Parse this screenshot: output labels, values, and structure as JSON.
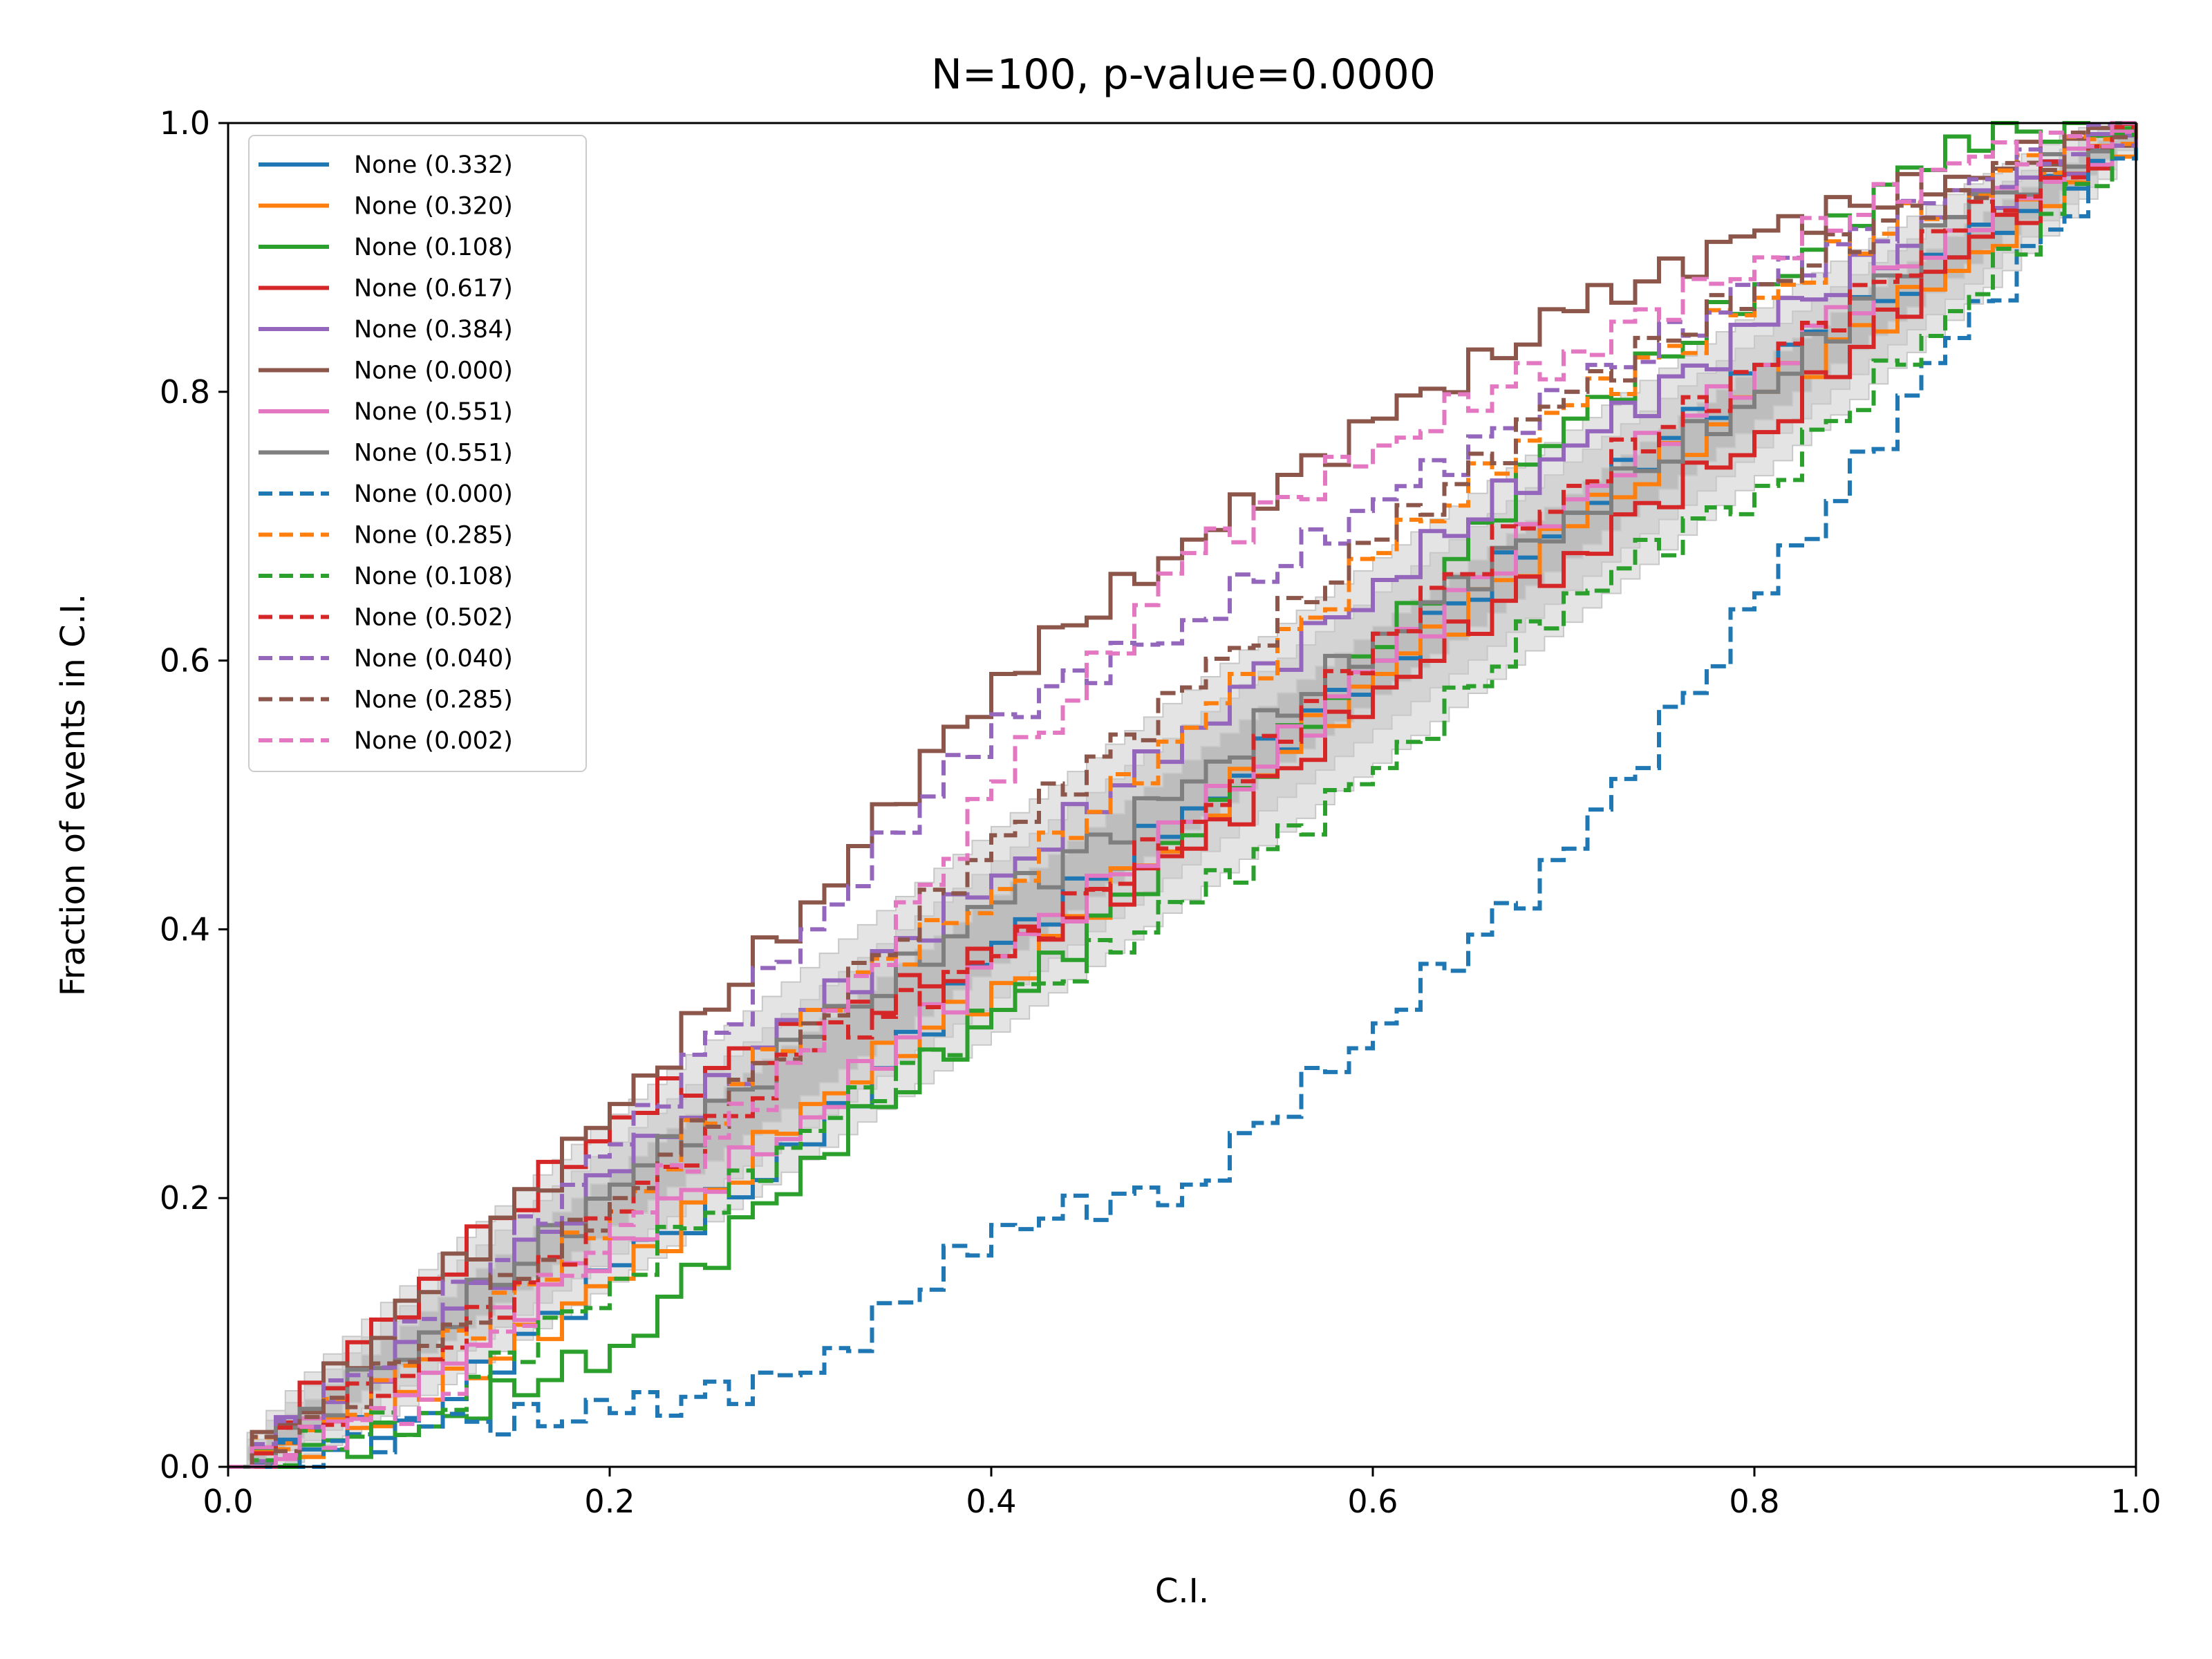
{
  "chart_data": {
    "type": "line",
    "title": "N=100, p-value=0.0000",
    "xlabel": "C.I.",
    "ylabel": "Fraction of events in C.I.",
    "xlim": [
      0,
      1
    ],
    "ylim": [
      0,
      1
    ],
    "xticks": [
      "0.0",
      "0.2",
      "0.4",
      "0.6",
      "0.8",
      "1.0"
    ],
    "yticks": [
      "0.0",
      "0.2",
      "0.4",
      "0.6",
      "0.8",
      "1.0"
    ],
    "grid": false,
    "legend_position": "upper-left",
    "bands": [
      {
        "name": "3-sigma",
        "halfwidth": 0.078,
        "color": "#e4e4e4"
      },
      {
        "name": "2-sigma",
        "halfwidth": 0.052,
        "color": "#d4d4d4"
      },
      {
        "name": "1-sigma",
        "halfwidth": 0.026,
        "color": "#bdbdbd"
      }
    ],
    "series": [
      {
        "label": "None (0.332)",
        "color": "#1f77b4",
        "dash": false,
        "x": [
          0,
          0.1,
          0.2,
          0.3,
          0.4,
          0.5,
          0.6,
          0.7,
          0.8,
          0.9,
          1.0
        ],
        "y": [
          0,
          0.04,
          0.15,
          0.24,
          0.39,
          0.49,
          0.6,
          0.71,
          0.82,
          0.9,
          1.0
        ]
      },
      {
        "label": "None (0.320)",
        "color": "#ff7f0e",
        "dash": false,
        "x": [
          0,
          0.1,
          0.2,
          0.3,
          0.4,
          0.5,
          0.6,
          0.7,
          0.8,
          0.9,
          1.0
        ],
        "y": [
          0,
          0.05,
          0.14,
          0.27,
          0.36,
          0.48,
          0.59,
          0.7,
          0.8,
          0.89,
          1.0
        ]
      },
      {
        "label": "None (0.108)",
        "color": "#2ca02c",
        "dash": false,
        "x": [
          0,
          0.1,
          0.2,
          0.3,
          0.4,
          0.5,
          0.6,
          0.7,
          0.8,
          0.9,
          1.0
        ],
        "y": [
          0,
          0.03,
          0.09,
          0.23,
          0.34,
          0.47,
          0.61,
          0.78,
          0.88,
          0.99,
          1.0
        ]
      },
      {
        "label": "None (0.617)",
        "color": "#d62728",
        "dash": false,
        "x": [
          0,
          0.1,
          0.2,
          0.3,
          0.4,
          0.5,
          0.6,
          0.7,
          0.8,
          0.9,
          1.0
        ],
        "y": [
          0,
          0.14,
          0.26,
          0.33,
          0.38,
          0.46,
          0.58,
          0.68,
          0.77,
          0.9,
          1.0
        ]
      },
      {
        "label": "None (0.384)",
        "color": "#9467bd",
        "dash": false,
        "x": [
          0,
          0.1,
          0.2,
          0.3,
          0.4,
          0.5,
          0.6,
          0.7,
          0.8,
          0.9,
          1.0
        ],
        "y": [
          0,
          0.1,
          0.22,
          0.34,
          0.44,
          0.55,
          0.66,
          0.76,
          0.85,
          0.93,
          1.0
        ]
      },
      {
        "label": "None (0.000)",
        "color": "#8c564b",
        "dash": false,
        "x": [
          0,
          0.1,
          0.2,
          0.3,
          0.4,
          0.5,
          0.6,
          0.7,
          0.8,
          0.9,
          1.0
        ],
        "y": [
          0,
          0.13,
          0.27,
          0.42,
          0.59,
          0.69,
          0.78,
          0.86,
          0.92,
          0.96,
          1.0
        ]
      },
      {
        "label": "None (0.551)",
        "color": "#e377c2",
        "dash": false,
        "x": [
          0,
          0.1,
          0.2,
          0.3,
          0.4,
          0.5,
          0.6,
          0.7,
          0.8,
          0.9,
          1.0
        ],
        "y": [
          0,
          0.07,
          0.17,
          0.26,
          0.38,
          0.48,
          0.6,
          0.72,
          0.82,
          0.92,
          1.0
        ]
      },
      {
        "label": "None (0.551)",
        "color": "#7f7f7f",
        "dash": false,
        "x": [
          0,
          0.1,
          0.2,
          0.3,
          0.4,
          0.5,
          0.6,
          0.7,
          0.8,
          0.9,
          1.0
        ],
        "y": [
          0,
          0.1,
          0.21,
          0.32,
          0.42,
          0.51,
          0.62,
          0.71,
          0.8,
          0.93,
          1.0
        ]
      },
      {
        "label": "None (0.000)",
        "color": "#1f77b4",
        "dash": true,
        "x": [
          0,
          0.1,
          0.2,
          0.3,
          0.4,
          0.5,
          0.6,
          0.7,
          0.8,
          0.9,
          1.0
        ],
        "y": [
          0,
          0.03,
          0.04,
          0.07,
          0.18,
          0.21,
          0.33,
          0.46,
          0.65,
          0.84,
          1.0
        ]
      },
      {
        "label": "None (0.285)",
        "color": "#ff7f0e",
        "dash": true,
        "x": [
          0,
          0.1,
          0.2,
          0.3,
          0.4,
          0.5,
          0.6,
          0.7,
          0.8,
          0.9,
          1.0
        ],
        "y": [
          0,
          0.08,
          0.19,
          0.34,
          0.43,
          0.55,
          0.68,
          0.79,
          0.87,
          0.95,
          1.0
        ]
      },
      {
        "label": "None (0.108)",
        "color": "#2ca02c",
        "dash": true,
        "x": [
          0,
          0.1,
          0.2,
          0.3,
          0.4,
          0.5,
          0.6,
          0.7,
          0.8,
          0.9,
          1.0
        ],
        "y": [
          0,
          0.04,
          0.14,
          0.25,
          0.34,
          0.42,
          0.52,
          0.65,
          0.73,
          0.86,
          1.0
        ]
      },
      {
        "label": "None (0.502)",
        "color": "#d62728",
        "dash": true,
        "x": [
          0,
          0.1,
          0.2,
          0.3,
          0.4,
          0.5,
          0.6,
          0.7,
          0.8,
          0.9,
          1.0
        ],
        "y": [
          0,
          0.08,
          0.19,
          0.31,
          0.38,
          0.48,
          0.62,
          0.73,
          0.82,
          0.92,
          1.0
        ]
      },
      {
        "label": "None (0.040)",
        "color": "#9467bd",
        "dash": true,
        "x": [
          0,
          0.1,
          0.2,
          0.3,
          0.4,
          0.5,
          0.6,
          0.7,
          0.8,
          0.9,
          1.0
        ],
        "y": [
          0,
          0.11,
          0.24,
          0.4,
          0.56,
          0.63,
          0.72,
          0.8,
          0.88,
          0.95,
          1.0
        ]
      },
      {
        "label": "None (0.285)",
        "color": "#8c564b",
        "dash": true,
        "x": [
          0,
          0.1,
          0.2,
          0.3,
          0.4,
          0.5,
          0.6,
          0.7,
          0.8,
          0.9,
          1.0
        ],
        "y": [
          0,
          0.09,
          0.2,
          0.33,
          0.47,
          0.58,
          0.69,
          0.8,
          0.88,
          0.95,
          1.0
        ]
      },
      {
        "label": "None (0.002)",
        "color": "#e377c2",
        "dash": true,
        "x": [
          0,
          0.1,
          0.2,
          0.3,
          0.4,
          0.5,
          0.6,
          0.7,
          0.8,
          0.9,
          1.0
        ],
        "y": [
          0,
          0.05,
          0.18,
          0.31,
          0.51,
          0.68,
          0.76,
          0.83,
          0.9,
          0.97,
          1.0
        ]
      }
    ]
  }
}
